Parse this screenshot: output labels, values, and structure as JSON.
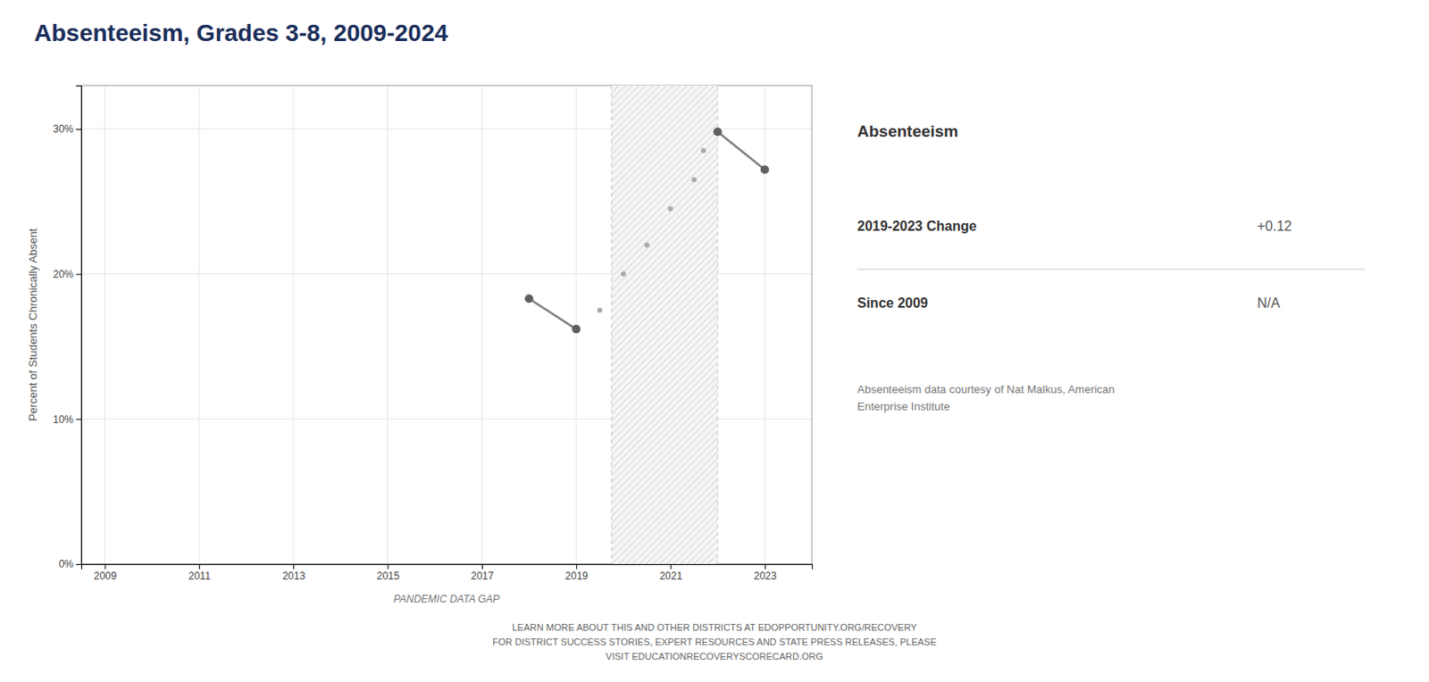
{
  "chart_data": {
    "type": "line",
    "title": "Absenteeism, Grades 3-8, 2009-2024",
    "ylabel": "Percent of Students Chronically Absent",
    "xlabel": "PANDEMIC DATA GAP",
    "xlim": [
      2008.5,
      2024.0
    ],
    "ylim": [
      0,
      0.33
    ],
    "xticks": [
      2009,
      2011,
      2013,
      2015,
      2017,
      2019,
      2021,
      2023
    ],
    "yticks": [
      {
        "value": 0.0,
        "label": "0%"
      },
      {
        "value": 0.1,
        "label": "10%"
      },
      {
        "value": 0.2,
        "label": "20%"
      },
      {
        "value": 0.3,
        "label": "30%"
      }
    ],
    "grid": true,
    "highlight_x": [
      2019.75,
      2022.0
    ],
    "series": [
      {
        "type": "line",
        "marker": "circle",
        "color": "#808080",
        "colors": [
          "#606060",
          "#606060"
        ],
        "x": [
          2018,
          2019
        ],
        "values": [
          0.183,
          0.162
        ]
      },
      {
        "type": "scatter",
        "marker": "circle",
        "color": "#aaaaaa",
        "x": [
          2019.5,
          2020.0,
          2020.5,
          2021.0,
          2021.5
        ],
        "values": [
          0.175,
          0.2,
          0.22,
          0.245,
          0.265
        ]
      },
      {
        "type": "line",
        "marker": "circle",
        "color": "#808080",
        "colors": [
          "#606060",
          "#606060"
        ],
        "x": [
          2022,
          2023
        ],
        "values": [
          0.298,
          0.272
        ]
      },
      {
        "type": "scatter",
        "marker": "circle",
        "color": "#aaaaaa",
        "x": [
          2021.7
        ],
        "values": [
          0.285
        ]
      }
    ],
    "panel": {
      "title": "Absenteeism",
      "stats": [
        {
          "label": "2019-2023 Change",
          "value": "+0.12"
        },
        {
          "label": "Since 2009",
          "value": "N/A"
        }
      ],
      "citation": "Absenteeism data courtesy of Nat Malkus, American\nEnterprise Institute"
    },
    "footer": "LEARN MORE ABOUT THIS AND OTHER DISTRICTS AT EDOPPORTUNITY.ORG/RECOVERY\nFOR DISTRICT SUCCESS STORIES, EXPERT RESOURCES AND STATE PRESS RELEASES, PLEASE\nVISIT EDUCATIONRECOVERYSCORECARD.ORG"
  }
}
